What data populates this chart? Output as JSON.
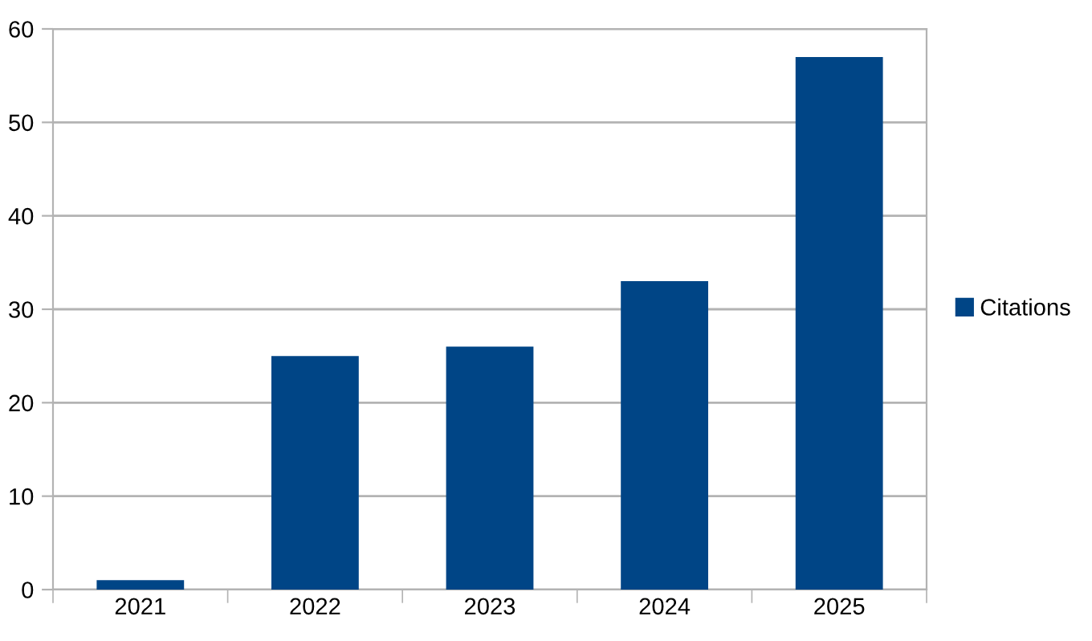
{
  "chart_data": {
    "type": "bar",
    "categories": [
      "2021",
      "2022",
      "2023",
      "2024",
      "2025"
    ],
    "series": [
      {
        "name": "Citations",
        "color": "#004586",
        "values": [
          1,
          25,
          26,
          33,
          57
        ]
      }
    ],
    "ylim": [
      0,
      60
    ],
    "yticks": [
      0,
      10,
      20,
      30,
      40,
      50,
      60
    ],
    "grid": "y",
    "legend": "right"
  }
}
